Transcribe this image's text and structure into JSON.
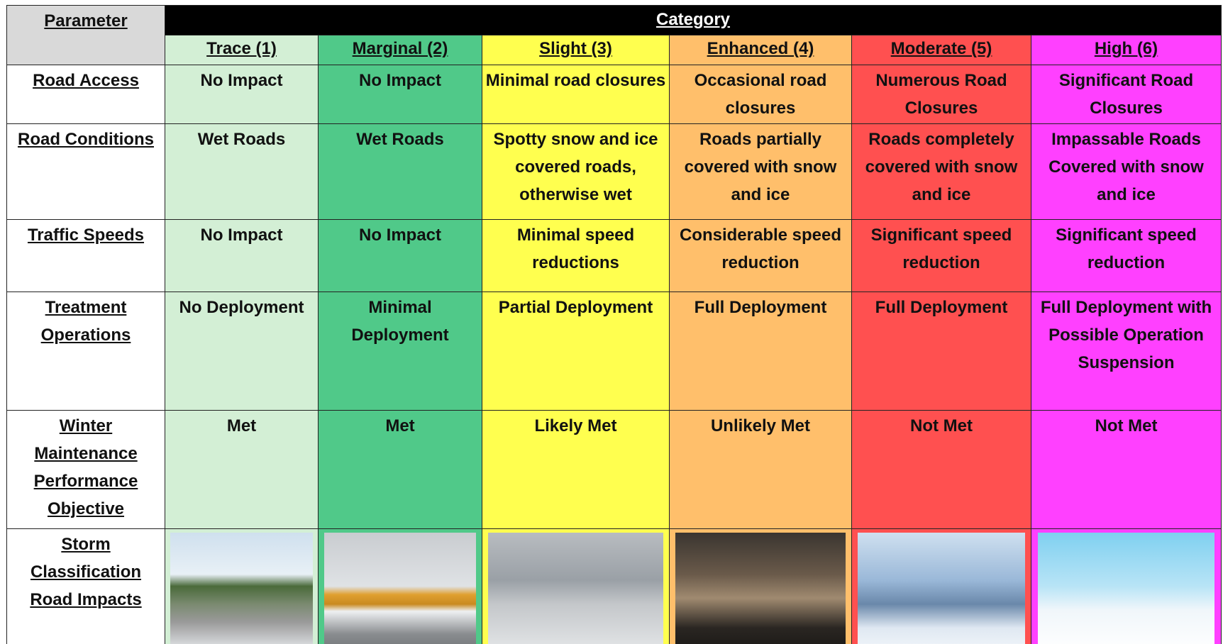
{
  "header": {
    "parameter": "Parameter",
    "category": "Category"
  },
  "columns": [
    {
      "label": "Trace (1)",
      "color": "#d3efd5"
    },
    {
      "label": "Marginal (2)",
      "color": "#50c989"
    },
    {
      "label": "Slight (3)",
      "color": "#ffff4f"
    },
    {
      "label": "Enhanced (4)",
      "color": "#ffbf6b"
    },
    {
      "label": "Moderate (5)",
      "color": "#ff5050"
    },
    {
      "label": "High (6)",
      "color": "#ff40ff"
    }
  ],
  "rows": [
    {
      "label": "Road Access",
      "cells": [
        "No Impact",
        "No Impact",
        "Minimal road closures",
        "Occasional road closures",
        "Numerous Road Closures",
        "Significant Road Closures"
      ]
    },
    {
      "label": "Road Conditions",
      "cells": [
        "Wet Roads",
        "Wet Roads",
        "Spotty snow and ice covered roads, otherwise wet",
        "Roads partially covered with snow and ice",
        "Roads completely covered with snow and ice",
        "Impassable Roads Covered with snow and ice"
      ]
    },
    {
      "label": "Traffic Speeds",
      "cells": [
        "No Impact",
        "No Impact",
        "Minimal speed reductions",
        "Considerable speed reduction",
        "Significant speed reduction",
        "Significant speed reduction"
      ]
    },
    {
      "label": "Treatment Operations",
      "cells": [
        "No Deployment",
        "Minimal Deployment",
        "Partial Deployment",
        "Full Deployment",
        "Full Deployment",
        "Full Deployment with Possible Operation Suspension"
      ]
    },
    {
      "label": "Winter Maintenance Performance Objective",
      "cells": [
        "Met",
        "Met",
        "Likely Met",
        "Unlikely Met",
        "Not Met",
        "Not Met"
      ]
    }
  ],
  "image_row": {
    "label": "Storm Classification Road Impacts"
  }
}
